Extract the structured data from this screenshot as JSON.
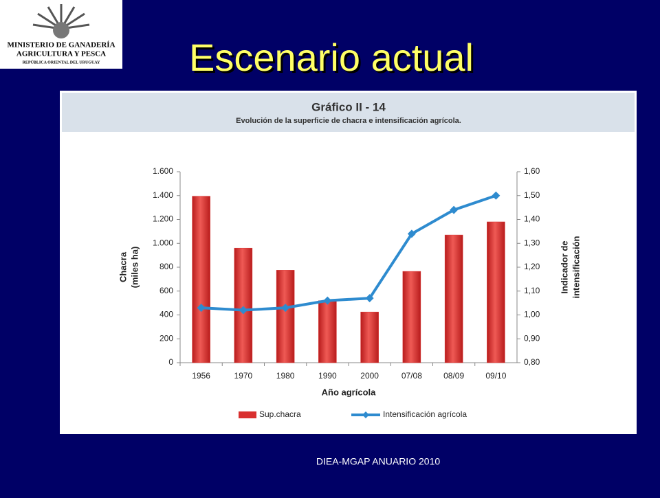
{
  "logo": {
    "lines": [
      "MINISTERIO DE GANADERÍA",
      "AGRICULTURA Y PESCA",
      "REPÚBLICA ORIENTAL DEL URUGUAY"
    ]
  },
  "slide_title": "Escenario actual",
  "footer": "DIEA-MGAP ANUARIO 2010",
  "chart_data": {
    "type": "bar_line",
    "title": "Gráfico II - 14",
    "subtitle": "Evolución de la superficie de chacra e intensificación agrícola.",
    "y_label": [
      "Chacra",
      "(miles ha)"
    ],
    "y2_label": [
      "Indicador de",
      "intensificación"
    ],
    "x_label": "Año agrícola",
    "categories": [
      "1956",
      "1970",
      "1980",
      "1990",
      "2000",
      "07/08",
      "08/09",
      "09/10"
    ],
    "series": [
      {
        "name": "Sup.chacra",
        "type": "bar",
        "color": "#d9302f",
        "values": [
          1395,
          960,
          775,
          520,
          425,
          765,
          1070,
          1180
        ]
      },
      {
        "name": "Intensificación agrícola",
        "type": "line",
        "axis": "y2",
        "color": "#2e8bcf",
        "values": [
          1.03,
          1.02,
          1.03,
          1.06,
          1.07,
          1.34,
          1.44,
          1.5
        ]
      }
    ],
    "ylim": [
      0,
      1600
    ],
    "yticks": [
      0,
      200,
      400,
      600,
      800,
      {
        "value": 1000,
        "label": "1.000"
      },
      {
        "value": 1200,
        "label": "1.200"
      },
      {
        "value": 1400,
        "label": "1.400"
      },
      {
        "value": 1600,
        "label": "1.600"
      }
    ],
    "y2lim": [
      0.8,
      1.6
    ],
    "y2ticks": [
      {
        "value": 0.8,
        "label": "0,80"
      },
      {
        "value": 0.9,
        "label": "0,90"
      },
      {
        "value": 1.0,
        "label": "1,00"
      },
      {
        "value": 1.1,
        "label": "1,10"
      },
      {
        "value": 1.2,
        "label": "1,20"
      },
      {
        "value": 1.3,
        "label": "1,30"
      },
      {
        "value": 1.4,
        "label": "1,40"
      },
      {
        "value": 1.5,
        "label": "1,50"
      },
      {
        "value": 1.6,
        "label": "1,60"
      }
    ],
    "legend": "bottom"
  }
}
